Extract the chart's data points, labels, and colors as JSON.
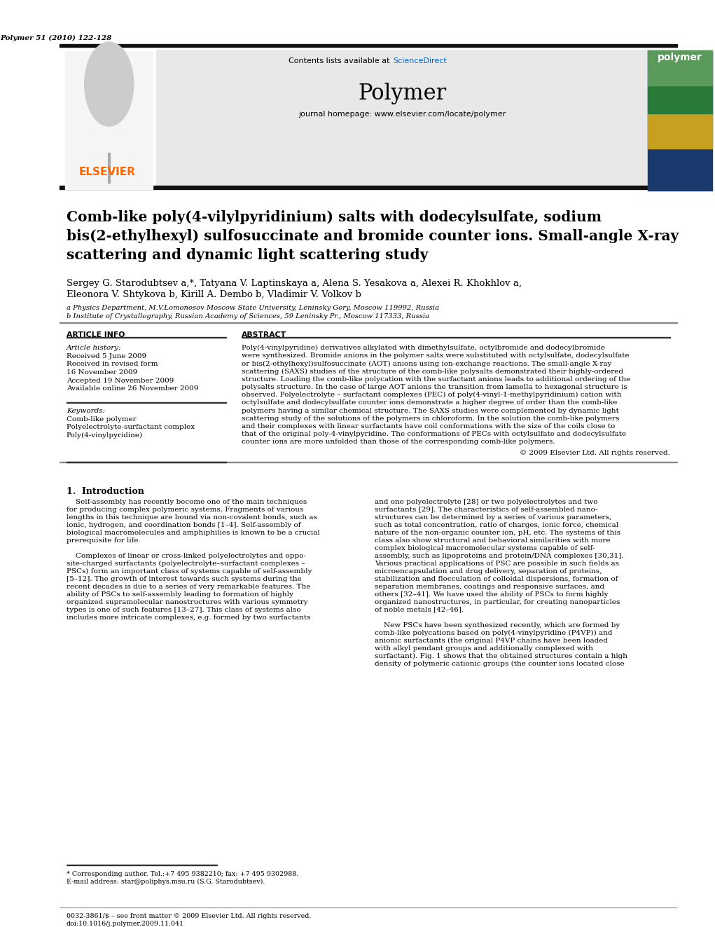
{
  "page_citation": "Polymer 51 (2010) 122-128",
  "journal_name": "Polymer",
  "journal_homepage": "journal homepage: www.elsevier.com/locate/polymer",
  "contents_line": "Contents lists available at ScienceDirect",
  "header_bg": "#e8e8e8",
  "title": "Comb-like poly(4-vilylpyridinium) salts with dodecylsulfate, sodium\nbis(2-ethylhexyl) sulfosuccinate and bromide counter ions. Small-angle X-ray\nscattering and dynamic light scattering study",
  "authors_line1": "Sergey G. Starodubtsev a,*, Tatyana V. Laptinskaya a, Alena S. Yesakova a, Alexei R. Khokhlov a,",
  "authors_line2": "Eleonora V. Shtykova b, Kirill A. Dembo b, Vladimir V. Volkov b",
  "affil_a": "a Physics Department, M.V.Lomonosov Moscow State University, Leninsky Gory, Moscow 119992, Russia",
  "affil_b": "b Institute of Crystallography, Russian Academy of Sciences, 59 Leninsky Pr., Moscow 117333, Russia",
  "article_info_header": "ARTICLE INFO",
  "abstract_header": "ABSTRACT",
  "article_history_label": "Article history:",
  "article_history_lines": [
    "Received 5 June 2009",
    "Received in revised form",
    "16 November 2009",
    "Accepted 19 November 2009",
    "Available online 26 November 2009"
  ],
  "keywords_label": "Keywords:",
  "keywords_lines": [
    "Comb-like polymer",
    "Polyelectrolyte-surfactant complex",
    "Poly(4-vinylpyridine)"
  ],
  "abstract_lines": [
    "Poly(4-vinylpyridine) derivatives alkylated with dimethylsulfate, octylbromide and dodecylbromide",
    "were synthesized. Bromide anions in the polymer salts were substituted with octylsulfate, dodecylsulfate",
    "or bis(2-ethylhexyl)sulfosuccinate (AOT) anions using ion-exchange reactions. The small-angle X-ray",
    "scattering (SAXS) studies of the structure of the comb-like polysalts demonstrated their highly-ordered",
    "structure. Loading the comb-like polycation with the surfactant anions leads to additional ordering of the",
    "polysalts structure. In the case of large AOT anions the transition from lamella to hexagonal structure is",
    "observed. Polyelectrolyte – surfactant complexes (PEC) of poly(4-vinyl-1-methylpyridinium) cation with",
    "octylsulfate and dodecylsulfate counter ions demonstrate a higher degree of order than the comb-like",
    "polymers having a similar chemical structure. The SAXS studies were complemented by dynamic light",
    "scattering study of the solutions of the polymers in chloroform. In the solution the comb-like polymers",
    "and their complexes with linear surfactants have coil conformations with the size of the coils close to",
    "that of the original poly-4-vinylpyridine. The conformations of PECs with octylsulfate and dodecylsulfate",
    "counter ions are more unfolded than those of the corresponding comb-like polymers."
  ],
  "copyright": "© 2009 Elsevier Ltd. All rights reserved.",
  "intro_header": "1.  Introduction",
  "left_intro_lines": [
    "    Self-assembly has recently become one of the main techniques",
    "for producing complex polymeric systems. Fragments of various",
    "lengths in this technique are bound via non-covalent bonds, such as",
    "ionic, hydrogen, and coordination bonds [1–4]. Self-assembly of",
    "biological macromolecules and amphiphilies is known to be a crucial",
    "prerequisite for life.",
    "",
    "    Complexes of linear or cross-linked polyelectrolytes and oppo-",
    "site-charged surfactants (polyelectrolyte–surfactant complexes –",
    "PSCs) form an important class of systems capable of self-assembly",
    "[5–12]. The growth of interest towards such systems during the",
    "recent decades is due to a series of very remarkable features. The",
    "ability of PSCs to self-assembly leading to formation of highly",
    "organized supramolecular nanostructures with various symmetry",
    "types is one of such features [13–27]. This class of systems also",
    "includes more intricate complexes, e.g. formed by two surfactants"
  ],
  "right_intro_lines": [
    "and one polyelectrolyte [28] or two polyelectrolytes and two",
    "surfactants [29]. The characteristics of self-assembled nano-",
    "structures can be determined by a series of various parameters,",
    "such as total concentration, ratio of charges, ionic force, chemical",
    "nature of the non-organic counter ion, pH, etc. The systems of this",
    "class also show structural and behavioral similarities with more",
    "complex biological macromolecular systems capable of self-",
    "assembly, such as lipoproteins and protein/DNA complexes [30,31].",
    "Various practical applications of PSC are possible in such fields as",
    "microencapsulation and drug delivery, separation of proteins,",
    "stabilization and flocculation of colloidal dispersions, formation of",
    "separation membranes, coatings and responsive surfaces, and",
    "others [32–41]. We have used the ability of PSCs to form highly",
    "organized nanostructures, in particular, for creating nanoparticles",
    "of noble metals [42–46].",
    "",
    "    New PSCs have been synthesized recently, which are formed by",
    "comb-like polycations based on poly(4-vinylpyridine (P4VP)) and",
    "anionic surfactants (the original P4VP chains have been loaded",
    "with alkyl pendant groups and additionally complexed with",
    "surfactant). Fig. 1 shows that the obtained structures contain a high",
    "density of polymeric cationic groups (the counter ions located close"
  ],
  "footnote_corresponding": "* Corresponding author. Tel.:+7 495 9382210; fax: +7 495 9302988.",
  "footnote_email": "E-mail address: star@poliphys.msu.ru (S.G. Starodubtsev).",
  "footer_left": "0032-3861/$ – see front matter © 2009 Elsevier Ltd. All rights reserved.",
  "footer_doi": "doi:10.1016/j.polymer.2009.11.041",
  "elsevier_color": "#FF6600",
  "link_color": "#0066CC",
  "background_color": "#ffffff",
  "text_color": "#000000"
}
